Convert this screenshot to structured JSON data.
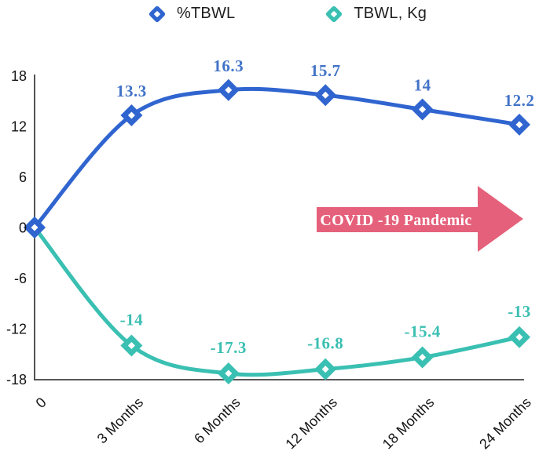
{
  "legend": [
    {
      "label": "%TBWL",
      "color": "#3065d0"
    },
    {
      "label": "TBWL, Kg",
      "color": "#3ac0b2"
    }
  ],
  "annotation": {
    "text": "COVID -19 Pandemic",
    "fill_color": "#e5617b",
    "text_color": "#ffffff"
  },
  "axis": {
    "y_ticks": [
      "18",
      "12",
      "6",
      "0",
      "-6",
      "-12",
      "-18"
    ],
    "x_labels": [
      "0",
      "3 Months",
      "6 Months",
      "12 Months",
      "18 Months",
      "24 Months"
    ]
  },
  "chart_data": {
    "type": "line",
    "categories": [
      "0",
      "3 Months",
      "6 Months",
      "12 Months",
      "18 Months",
      "24 Months"
    ],
    "series": [
      {
        "name": "%TBWL",
        "color": "#3065d0",
        "label_color": "#4273c8",
        "values": [
          0,
          13.3,
          16.3,
          15.7,
          14,
          12.2
        ],
        "labels": [
          "",
          "13.3",
          "16.3",
          "15.7",
          "14",
          "12.2"
        ]
      },
      {
        "name": "TBWL, Kg",
        "color": "#3ac0b2",
        "label_color": "#3bbfb2",
        "values": [
          0,
          -14,
          -17.3,
          -16.8,
          -15.4,
          -13
        ],
        "labels": [
          "",
          "-14",
          "-17.3",
          "-16.8",
          "-15.4",
          "-13"
        ]
      }
    ],
    "title": "",
    "xlabel": "",
    "ylabel": "",
    "ylim": [
      -18,
      18
    ],
    "y_tick_step": 6,
    "grid": false,
    "legend_position": "top",
    "marker": "diamond"
  }
}
